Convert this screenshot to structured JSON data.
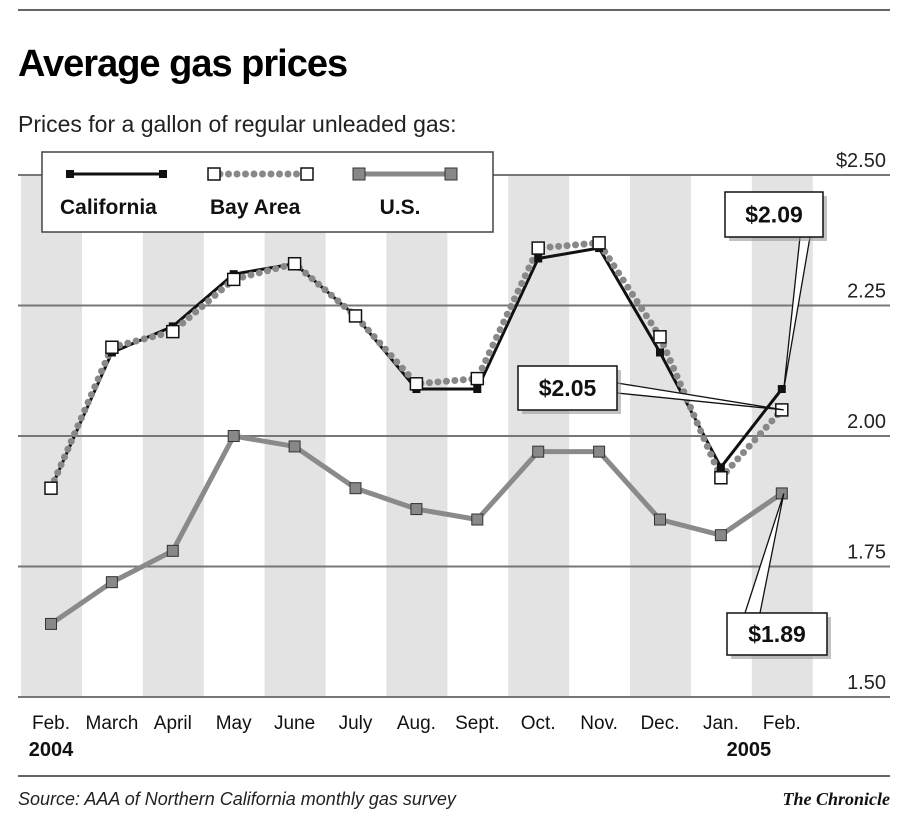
{
  "chart_data": {
    "type": "line",
    "title": "Average gas prices",
    "subtitle": "Prices for a gallon of regular unleaded gas:",
    "categories": [
      "Feb.",
      "March",
      "April",
      "May",
      "June",
      "July",
      "Aug.",
      "Sept.",
      "Oct.",
      "Nov.",
      "Dec.",
      "Jan.",
      "Feb."
    ],
    "year_labels": [
      {
        "index": 0,
        "label": "2004"
      },
      {
        "index": 11,
        "label": "2005"
      }
    ],
    "ylim": [
      1.5,
      2.5
    ],
    "yticks": [
      {
        "value": 2.5,
        "label": "$2.50"
      },
      {
        "value": 2.25,
        "label": "2.25"
      },
      {
        "value": 2.0,
        "label": "2.00"
      },
      {
        "value": 1.75,
        "label": "1.75"
      },
      {
        "value": 1.5,
        "label": "1.50"
      }
    ],
    "grid": "horizontal lines with alternating gray month columns",
    "legend_position": "top-left",
    "series": [
      {
        "name": "California",
        "color": "#111111",
        "marker": "small black square",
        "values": [
          1.9,
          2.16,
          2.21,
          2.31,
          2.33,
          2.23,
          2.09,
          2.09,
          2.34,
          2.36,
          2.16,
          1.94,
          2.09
        ]
      },
      {
        "name": "Bay Area",
        "color": "#888888",
        "marker": "white square, dotted line",
        "values": [
          1.9,
          2.17,
          2.2,
          2.3,
          2.33,
          2.23,
          2.1,
          2.11,
          2.36,
          2.37,
          2.19,
          1.92,
          2.05
        ]
      },
      {
        "name": "U.S.",
        "color": "#8a8a8a",
        "marker": "gray square",
        "values": [
          1.64,
          1.72,
          1.78,
          2.0,
          1.98,
          1.9,
          1.86,
          1.84,
          1.97,
          1.97,
          1.84,
          1.81,
          1.89
        ]
      }
    ],
    "annotations": [
      {
        "series": 0,
        "index": 12,
        "label": "$2.09"
      },
      {
        "series": 1,
        "index": 12,
        "label": "$2.05"
      },
      {
        "series": 2,
        "index": 12,
        "label": "$1.89"
      }
    ]
  },
  "footer": {
    "source": "Source: AAA of Northern California monthly gas survey",
    "credit": "The Chronicle"
  }
}
